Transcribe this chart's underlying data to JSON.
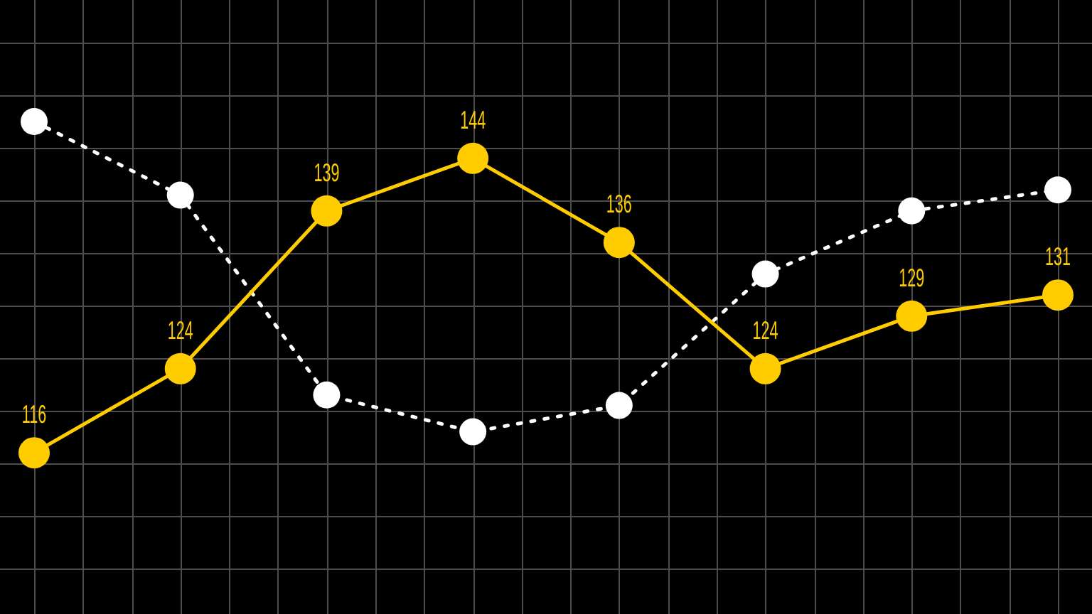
{
  "chart_data": {
    "type": "line",
    "categories": [
      null,
      null,
      null,
      null,
      null,
      null,
      null,
      null
    ],
    "series": [
      {
        "color": "#ffffff",
        "values": [
          147.5,
          140.5,
          121.5,
          118,
          120.5,
          133,
          139,
          141
        ],
        "line_style": "dotted"
      },
      {
        "color": "#ffcc00",
        "values": [
          116,
          124,
          139,
          144,
          136,
          124,
          129,
          131
        ],
        "value_labels": [
          "116",
          "124",
          "139",
          "144",
          "136",
          "124",
          "129",
          "131"
        ],
        "line_style": "solid"
      }
    ],
    "yticks": [
      {
        "value": 105,
        "label": null
      },
      {
        "value": 110,
        "label": null
      },
      {
        "value": 115,
        "label": null
      },
      {
        "value": 120,
        "label": null
      },
      {
        "value": 125,
        "label": null
      },
      {
        "value": 130,
        "label": null
      },
      {
        "value": 135,
        "label": null
      },
      {
        "value": 140,
        "label": null
      },
      {
        "value": 145,
        "label": null
      },
      {
        "value": 150,
        "label": null
      },
      {
        "value": 155,
        "label": null
      }
    ],
    "grid": true,
    "tick_labels": false,
    "marker": "circle"
  }
}
